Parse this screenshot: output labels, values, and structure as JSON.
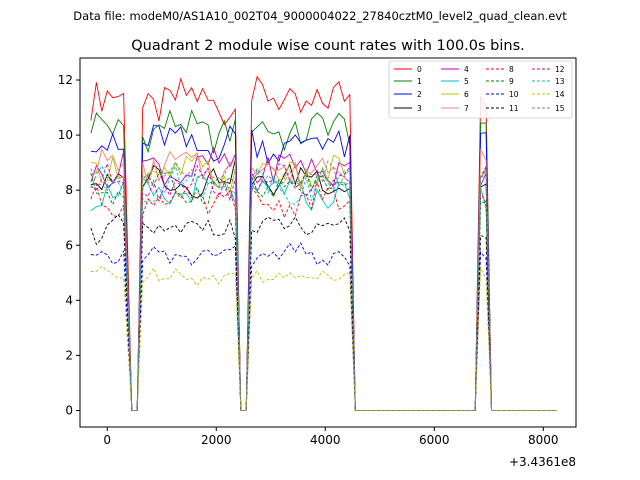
{
  "chart_data": {
    "type": "line",
    "suptitle": "Data file: modeM0/AS1A10_002T04_9000004022_27840cztM0_level2_quad_clean.evt",
    "title": "Quadrant 2 module wise count rates with 100.0s bins.",
    "xlabel": "",
    "ylabel": "",
    "x_offset_label": "+3.4361e8",
    "xlim": [
      -500,
      8600
    ],
    "ylim": [
      -0.6,
      12.8
    ],
    "xticks": [
      0,
      2000,
      4000,
      6000,
      8000
    ],
    "xtick_labels": [
      "0",
      "2000",
      "4000",
      "6000",
      "8000"
    ],
    "yticks": [
      0,
      2,
      4,
      6,
      8,
      10,
      12
    ],
    "ytick_labels": [
      "0",
      "2",
      "4",
      "6",
      "8",
      "10",
      "12"
    ],
    "grid": false,
    "legend_position": "top-right",
    "segments": [
      {
        "start": -300,
        "end": 350,
        "step": 100
      },
      {
        "start": 450,
        "end": 550,
        "step": 100
      },
      {
        "start": 650,
        "end": 2350,
        "step": 100
      },
      {
        "start": 2450,
        "end": 2550,
        "step": 100
      },
      {
        "start": 2550,
        "end": 4450,
        "step": 100
      },
      {
        "start": 4550,
        "end": 6750,
        "step": 100
      },
      {
        "start": 6850,
        "end": 6950,
        "step": 100
      },
      {
        "start": 7050,
        "end": 8250,
        "step": 100
      }
    ],
    "series": [
      {
        "name": "0",
        "color": "#ff0000",
        "dash": "solid",
        "level": 11.2
      },
      {
        "name": "1",
        "color": "#008000",
        "dash": "solid",
        "level": 10.2
      },
      {
        "name": "2",
        "color": "#0000ff",
        "dash": "solid",
        "level": 9.7
      },
      {
        "name": "3",
        "color": "#000000",
        "dash": "solid",
        "level": 8.4
      },
      {
        "name": "4",
        "color": "#bf00bf",
        "dash": "solid",
        "level": 8.8
      },
      {
        "name": "5",
        "color": "#00bfbf",
        "dash": "solid",
        "level": 7.9
      },
      {
        "name": "6",
        "color": "#bfbf00",
        "dash": "solid",
        "level": 8.6
      },
      {
        "name": "7",
        "color": "#fa8072",
        "dash": "solid",
        "level": 8.8
      },
      {
        "name": "8",
        "color": "#ff0000",
        "dash": "dashed",
        "level": 7.6
      },
      {
        "name": "9",
        "color": "#008000",
        "dash": "dashed",
        "level": 8.1
      },
      {
        "name": "10",
        "color": "#0000ff",
        "dash": "dashed",
        "level": 5.6
      },
      {
        "name": "11",
        "color": "#000000",
        "dash": "dashed",
        "level": 6.6
      },
      {
        "name": "12",
        "color": "#bf00bf",
        "dash": "dashed",
        "level": 8.3
      },
      {
        "name": "13",
        "color": "#00bfbf",
        "dash": "dashed",
        "level": 8.2
      },
      {
        "name": "14",
        "color": "#bfbf00",
        "dash": "dashed",
        "level": 4.9
      },
      {
        "name": "15",
        "color": "#808080",
        "dash": "dashed",
        "level": 8.5
      }
    ]
  }
}
